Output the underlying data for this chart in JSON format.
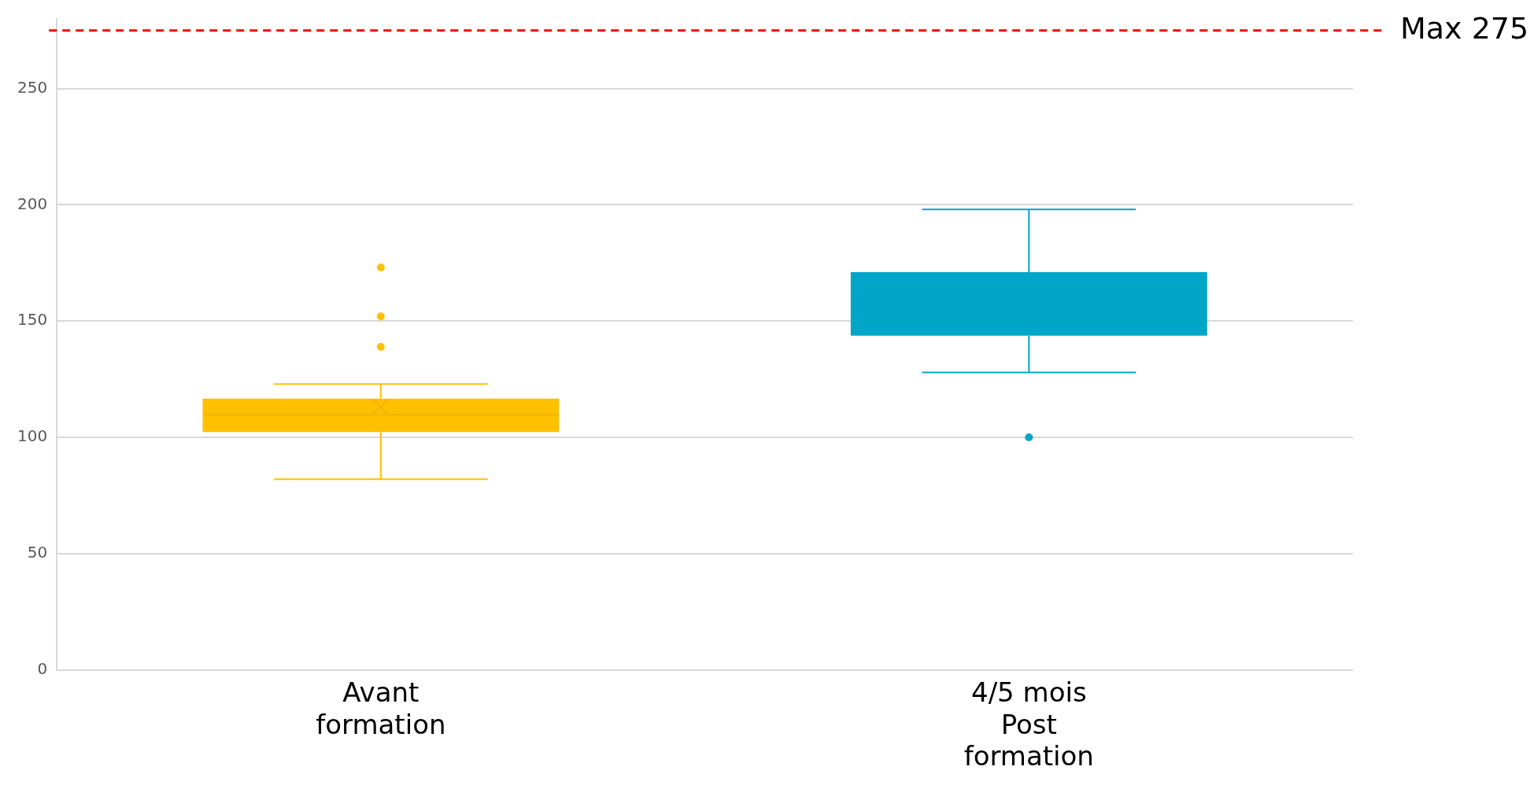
{
  "chart_data": {
    "type": "box",
    "categories": [
      "Avant formation",
      "4/5 mois Post formation"
    ],
    "colors": [
      "#ffc000",
      "#00a5c8"
    ],
    "boxes": [
      {
        "low": 82,
        "q1": 102.3,
        "median": 109.7,
        "q3": 116.7,
        "high": 122.9,
        "mean": 113.2,
        "outliers": [
          138.9,
          152,
          173.1
        ]
      },
      {
        "low": 127.9,
        "q1": 143.7,
        "median": null,
        "q3": 171.1,
        "high": 198,
        "outliers": [
          100
        ]
      }
    ],
    "ylim": [
      0,
      280
    ],
    "yticks": [
      0,
      50,
      100,
      150,
      200,
      250
    ],
    "grid": "y",
    "ref_lines": [
      {
        "axis": "y",
        "value": 275,
        "label": "Max 275",
        "color": "#ff0000",
        "line_style": "dashed"
      }
    ]
  }
}
